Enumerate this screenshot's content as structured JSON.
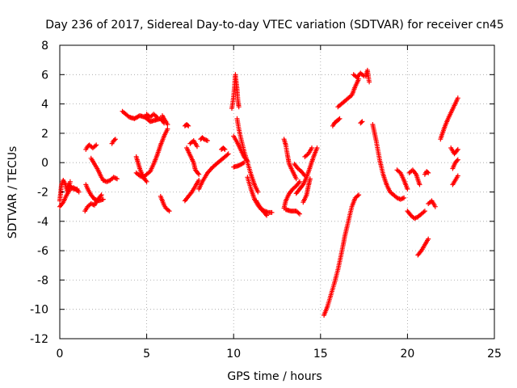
{
  "chart_data": {
    "type": "scatter",
    "title": "Day 236 of 2017, Sidereal Day-to-day VTEC variation (SDTVAR) for receiver cn45",
    "xlabel": "GPS time / hours",
    "ylabel": "SDTVAR / TECUs",
    "xlim": [
      0,
      25
    ],
    "ylim": [
      -12,
      8
    ],
    "xticks": [
      0,
      5,
      10,
      15,
      20,
      25
    ],
    "yticks": [
      -12,
      -10,
      -8,
      -6,
      -4,
      -2,
      0,
      2,
      4,
      6,
      8
    ],
    "xtick_labels": [
      "0",
      "5",
      "10",
      "15",
      "20",
      "25"
    ],
    "ytick_labels": [
      "-12",
      "-10",
      "-8",
      "-6",
      "-4",
      "-2",
      "0",
      "2",
      "4",
      "6",
      "8"
    ],
    "grid": true,
    "marker": "+",
    "color": "#ff0000",
    "series": [
      {
        "name": "s01",
        "x": [
          0.0,
          0.1,
          0.2,
          0.3,
          0.45,
          0.6
        ],
        "y": [
          -2.6,
          -1.5,
          -1.2,
          -1.4,
          -2.0,
          -1.3
        ]
      },
      {
        "name": "s02",
        "x": [
          0.0,
          0.2,
          0.4,
          0.6,
          0.8,
          1.0
        ],
        "y": [
          -3.0,
          -2.7,
          -2.2,
          -1.8,
          -1.7,
          -1.9
        ]
      },
      {
        "name": "s03",
        "x": [
          0.5,
          0.8,
          1.0,
          1.1
        ],
        "y": [
          -1.5,
          -1.8,
          -1.8,
          -2.0
        ]
      },
      {
        "name": "s04",
        "x": [
          1.45,
          1.6,
          1.8,
          2.0,
          2.2,
          2.4
        ],
        "y": [
          -3.3,
          -3.0,
          -2.8,
          -2.9,
          -2.5,
          -2.2
        ]
      },
      {
        "name": "s05",
        "x": [
          1.5,
          1.6,
          1.7,
          1.9,
          2.1
        ],
        "y": [
          0.9,
          1.1,
          1.2,
          1.0,
          1.2
        ]
      },
      {
        "name": "s06",
        "x": [
          1.5,
          1.65,
          1.8,
          2.0,
          2.25,
          2.5
        ],
        "y": [
          -1.5,
          -1.9,
          -2.2,
          -2.5,
          -2.6,
          -2.5
        ]
      },
      {
        "name": "s07",
        "x": [
          1.8,
          2.0,
          2.2,
          2.35,
          2.5
        ],
        "y": [
          0.3,
          -0.1,
          -0.5,
          -0.9,
          -1.2
        ]
      },
      {
        "name": "s08",
        "x": [
          2.5,
          2.7,
          2.9,
          3.1,
          3.3
        ],
        "y": [
          -1.2,
          -1.3,
          -1.2,
          -1.0,
          -1.1
        ]
      },
      {
        "name": "s09",
        "x": [
          3.0,
          3.1,
          3.2
        ],
        "y": [
          1.3,
          1.5,
          1.6
        ]
      },
      {
        "name": "s10",
        "x": [
          3.6,
          3.8,
          4.0,
          4.3,
          4.6,
          4.9,
          5.2,
          5.5,
          5.8,
          6.0
        ],
        "y": [
          3.5,
          3.3,
          3.1,
          3.0,
          3.2,
          3.1,
          2.8,
          2.9,
          3.0,
          2.7
        ]
      },
      {
        "name": "s11",
        "x": [
          5.0,
          5.2,
          5.4,
          5.6
        ],
        "y": [
          3.3,
          3.1,
          3.3,
          3.1
        ]
      },
      {
        "name": "s12",
        "x": [
          4.4,
          4.6,
          4.8,
          5.0,
          5.2,
          5.4,
          5.6,
          5.8,
          6.0,
          6.2
        ],
        "y": [
          -0.7,
          -0.9,
          -1.0,
          -0.8,
          -0.6,
          -0.1,
          0.5,
          1.2,
          1.8,
          2.3
        ]
      },
      {
        "name": "s13",
        "x": [
          4.4,
          4.5,
          4.6,
          4.7,
          4.8,
          5.0
        ],
        "y": [
          0.4,
          0.0,
          -0.4,
          -0.7,
          -1.0,
          -1.3
        ]
      },
      {
        "name": "s14",
        "x": [
          5.9,
          6.0,
          6.2
        ],
        "y": [
          3.2,
          3.0,
          2.6
        ]
      },
      {
        "name": "s15",
        "x": [
          5.8,
          5.9,
          6.0,
          6.1,
          6.3
        ],
        "y": [
          -2.3,
          -2.6,
          -2.9,
          -3.1,
          -3.3
        ]
      },
      {
        "name": "s16",
        "x": [
          7.2,
          7.3,
          7.4
        ],
        "y": [
          2.5,
          2.6,
          2.5
        ]
      },
      {
        "name": "s17",
        "x": [
          7.2,
          7.4,
          7.6,
          7.8,
          8.0
        ],
        "y": [
          -2.6,
          -2.3,
          -2.0,
          -1.6,
          -1.2
        ]
      },
      {
        "name": "s18",
        "x": [
          7.3,
          7.5,
          7.7,
          7.8,
          8.0
        ],
        "y": [
          1.0,
          0.5,
          0.0,
          -0.5,
          -0.8
        ]
      },
      {
        "name": "s19",
        "x": [
          7.5,
          7.7,
          7.9
        ],
        "y": [
          1.3,
          1.5,
          1.1
        ]
      },
      {
        "name": "s20",
        "x": [
          8.1,
          8.2,
          8.3,
          8.5
        ],
        "y": [
          1.6,
          1.7,
          1.6,
          1.5
        ]
      },
      {
        "name": "s21",
        "x": [
          8.0,
          8.2,
          8.5,
          8.8,
          9.1,
          9.4,
          9.7
        ],
        "y": [
          -1.8,
          -1.3,
          -0.7,
          -0.3,
          0.0,
          0.3,
          0.6
        ]
      },
      {
        "name": "s22",
        "x": [
          9.3,
          9.4,
          9.5
        ],
        "y": [
          0.9,
          1.0,
          0.9
        ]
      },
      {
        "name": "s23",
        "x": [
          9.9,
          10.0,
          10.05,
          10.1,
          10.2,
          10.25,
          10.3
        ],
        "y": [
          3.7,
          4.5,
          5.2,
          6.0,
          5.0,
          4.2,
          3.8
        ]
      },
      {
        "name": "s24",
        "x": [
          10.2,
          10.3,
          10.45,
          10.6,
          10.8,
          11.0,
          11.2,
          11.4
        ],
        "y": [
          3.0,
          2.3,
          1.5,
          0.8,
          0.0,
          -0.8,
          -1.5,
          -2.0
        ]
      },
      {
        "name": "s25",
        "x": [
          10.0,
          10.2,
          10.4,
          10.6,
          10.8
        ],
        "y": [
          1.8,
          1.4,
          0.9,
          0.4,
          0.1
        ]
      },
      {
        "name": "s26",
        "x": [
          10.0,
          10.3,
          10.6
        ],
        "y": [
          -0.3,
          -0.2,
          0.0
        ]
      },
      {
        "name": "s27",
        "x": [
          10.8,
          11.0,
          11.2,
          11.4,
          11.6,
          11.8,
          12.0,
          12.2
        ],
        "y": [
          -1.0,
          -1.8,
          -2.5,
          -2.9,
          -3.2,
          -3.3,
          -3.4,
          -3.4
        ]
      },
      {
        "name": "s28",
        "x": [
          11.3,
          11.5,
          11.7,
          11.9
        ],
        "y": [
          -2.6,
          -3.0,
          -3.3,
          -3.6
        ]
      },
      {
        "name": "s29",
        "x": [
          12.9,
          13.0,
          13.1,
          13.2,
          13.4,
          13.6
        ],
        "y": [
          1.6,
          1.2,
          0.5,
          -0.1,
          -0.6,
          -1.1
        ]
      },
      {
        "name": "s30",
        "x": [
          12.9,
          13.0,
          13.2,
          13.4,
          13.6,
          13.8
        ],
        "y": [
          -3.1,
          -2.6,
          -2.1,
          -1.8,
          -1.6,
          -1.3
        ]
      },
      {
        "name": "s31",
        "x": [
          13.0,
          13.3,
          13.6,
          13.8
        ],
        "y": [
          -3.2,
          -3.3,
          -3.3,
          -3.5
        ]
      },
      {
        "name": "s32",
        "x": [
          13.5,
          13.7,
          13.9,
          14.1
        ],
        "y": [
          -0.1,
          -0.4,
          -0.6,
          -0.9
        ]
      },
      {
        "name": "s33",
        "x": [
          13.6,
          13.8,
          14.0,
          14.2,
          14.4,
          14.6,
          14.8
        ],
        "y": [
          -2.1,
          -1.8,
          -1.5,
          -1.0,
          -0.3,
          0.4,
          1.0
        ]
      },
      {
        "name": "s34",
        "x": [
          14.0,
          14.2,
          14.3,
          14.4
        ],
        "y": [
          -2.7,
          -2.2,
          -1.6,
          -1.1
        ]
      },
      {
        "name": "s35",
        "x": [
          14.1,
          14.3,
          14.5
        ],
        "y": [
          0.4,
          0.6,
          1.0
        ]
      },
      {
        "name": "s36",
        "x": [
          15.2,
          15.4,
          15.6,
          15.8,
          16.0,
          16.2,
          16.4,
          16.6,
          16.8,
          17.0,
          17.2
        ],
        "y": [
          -10.4,
          -9.8,
          -9.0,
          -8.2,
          -7.3,
          -6.2,
          -5.0,
          -4.0,
          -3.0,
          -2.4,
          -2.2
        ]
      },
      {
        "name": "s37",
        "x": [
          15.7,
          15.8,
          15.9,
          16.0,
          16.1
        ],
        "y": [
          2.5,
          2.7,
          2.8,
          2.9,
          3.0
        ]
      },
      {
        "name": "s38",
        "x": [
          16.0,
          16.2,
          16.4,
          16.6,
          16.8,
          17.0,
          17.2
        ],
        "y": [
          3.8,
          4.0,
          4.2,
          4.4,
          4.6,
          5.2,
          5.7
        ]
      },
      {
        "name": "s39",
        "x": [
          16.9,
          17.1,
          17.3,
          17.5
        ],
        "y": [
          6.0,
          5.8,
          6.1,
          5.9
        ]
      },
      {
        "name": "s40",
        "x": [
          17.6,
          17.7,
          17.8
        ],
        "y": [
          5.9,
          6.3,
          5.5
        ]
      },
      {
        "name": "s41",
        "x": [
          17.3,
          17.4
        ],
        "y": [
          2.7,
          2.8
        ]
      },
      {
        "name": "s42",
        "x": [
          18.0,
          18.2,
          18.4,
          18.6,
          18.8,
          19.0,
          19.2,
          19.4,
          19.6,
          19.8
        ],
        "y": [
          2.6,
          1.5,
          0.2,
          -0.8,
          -1.5,
          -2.0,
          -2.2,
          -2.4,
          -2.5,
          -2.4
        ]
      },
      {
        "name": "s43",
        "x": [
          19.4,
          19.6,
          19.8,
          20.0
        ],
        "y": [
          -0.5,
          -0.7,
          -1.2,
          -1.8
        ]
      },
      {
        "name": "s44",
        "x": [
          20.0,
          20.2,
          20.4,
          20.6,
          20.8,
          21.0
        ],
        "y": [
          -3.3,
          -3.6,
          -3.8,
          -3.7,
          -3.5,
          -3.3
        ]
      },
      {
        "name": "s45",
        "x": [
          20.1,
          20.3,
          20.5,
          20.7
        ],
        "y": [
          -0.7,
          -0.5,
          -0.8,
          -1.5
        ]
      },
      {
        "name": "s46",
        "x": [
          20.6,
          20.8,
          21.0,
          21.2
        ],
        "y": [
          -6.3,
          -6.0,
          -5.6,
          -5.2
        ]
      },
      {
        "name": "s47",
        "x": [
          21.0,
          21.1,
          21.2
        ],
        "y": [
          -0.8,
          -0.6,
          -0.7
        ]
      },
      {
        "name": "s48",
        "x": [
          21.2,
          21.4,
          21.6
        ],
        "y": [
          -2.8,
          -2.6,
          -3.0
        ]
      },
      {
        "name": "s49",
        "x": [
          21.9,
          22.1,
          22.3,
          22.5,
          22.7,
          22.9
        ],
        "y": [
          1.6,
          2.3,
          2.9,
          3.4,
          3.9,
          4.4
        ]
      },
      {
        "name": "s50",
        "x": [
          22.5,
          22.7,
          22.9
        ],
        "y": [
          1.0,
          0.6,
          0.9
        ]
      },
      {
        "name": "s51",
        "x": [
          22.6,
          22.75,
          22.9
        ],
        "y": [
          -0.4,
          0.0,
          0.2
        ]
      },
      {
        "name": "s52",
        "x": [
          22.6,
          22.8,
          22.9
        ],
        "y": [
          -1.5,
          -1.1,
          -0.9
        ]
      }
    ]
  }
}
